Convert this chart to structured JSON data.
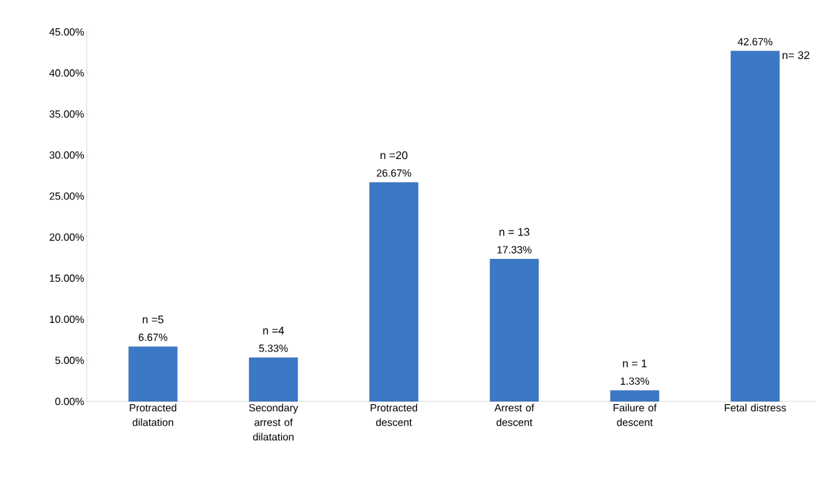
{
  "chart_data": {
    "type": "bar",
    "categories": [
      "Protracted dilatation",
      "Secondary arrest of dilatation",
      "Protracted descent",
      "Arrest  of descent",
      "Failure of descent",
      "Fetal distress"
    ],
    "values": [
      6.67,
      5.33,
      26.67,
      17.33,
      1.33,
      42.67
    ],
    "value_labels": [
      "6.67%",
      "5.33%",
      "26.67%",
      "17.33%",
      "1.33%",
      "42.67%"
    ],
    "color": "#3b78c6",
    "ylim": [
      0,
      45
    ],
    "yticks": [
      {
        "value": 0,
        "label": "0.00%"
      },
      {
        "value": 5,
        "label": "5.00%"
      },
      {
        "value": 10,
        "label": "10.00%"
      },
      {
        "value": 15,
        "label": "15.00%"
      },
      {
        "value": 20,
        "label": "20.00%"
      },
      {
        "value": 25,
        "label": "25.00%"
      },
      {
        "value": 30,
        "label": "30.00%"
      },
      {
        "value": 35,
        "label": "35.00%"
      },
      {
        "value": 40,
        "label": "40.00%"
      },
      {
        "value": 45,
        "label": "45.00%"
      }
    ],
    "annotations": [
      "n =5",
      "n =4",
      "n =20",
      "n = 13",
      "n = 1",
      "n= 32"
    ]
  }
}
